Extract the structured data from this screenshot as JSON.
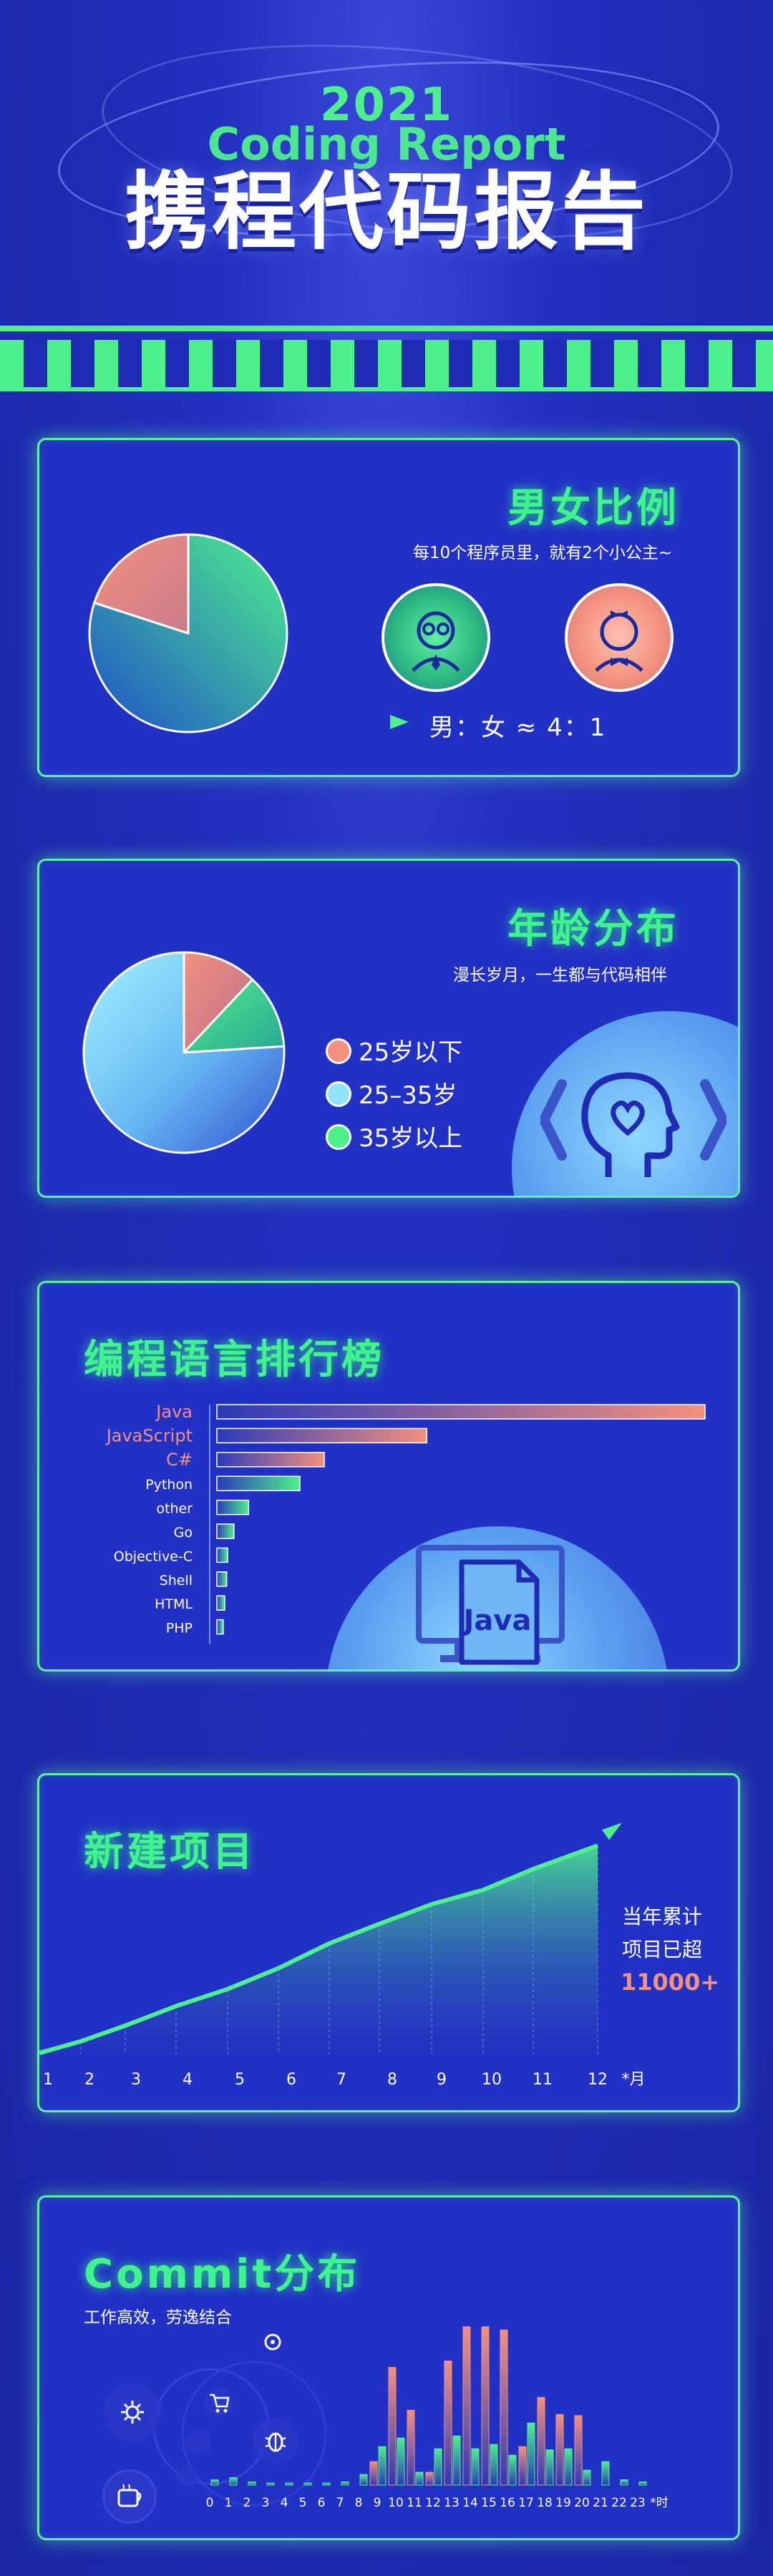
{
  "header": {
    "year": "2021",
    "subtitle": "Coding Report",
    "title": "携程代码报告"
  },
  "colors": {
    "green": "#4ef08c",
    "salmon": "#f4907e",
    "sky": "#8fe4f8",
    "bg": "#1f2bb5"
  },
  "gender": {
    "title": "男女比例",
    "caption": "每10个程序员里，就有2个小公主~",
    "ratio_text": "男：女 ≈ 4：1",
    "male_icon": "male-programmer-icon",
    "female_icon": "female-programmer-icon"
  },
  "age": {
    "title": "年龄分布",
    "caption": "漫长岁月，一生都与代码相伴",
    "icon": "head-heart-code-icon",
    "legend": [
      "25岁以下",
      "25–35岁",
      "35岁以上"
    ]
  },
  "languages": {
    "title": "编程语言排行榜",
    "icon": "java-file-icon",
    "java_label": "Java"
  },
  "projects": {
    "title": "新建项目",
    "summary_line1": "当年累计",
    "summary_line2": "项目已超",
    "summary_value": "11000+",
    "unit": "*月"
  },
  "commits": {
    "title": "Commit分布",
    "caption": "工作高效，劳逸结合",
    "unit": "*时",
    "icons": [
      "coffee-icon",
      "settings-icon",
      "cart-icon",
      "bug-icon"
    ]
  },
  "chart_data": [
    {
      "type": "pie",
      "id": "gender",
      "categories": [
        "男",
        "女"
      ],
      "values": [
        80,
        20
      ],
      "colors": [
        "#4ef08c",
        "#f4907e"
      ]
    },
    {
      "type": "pie",
      "id": "age",
      "categories": [
        "25岁以下",
        "25–35岁",
        "35岁以上"
      ],
      "values": [
        12,
        76,
        12
      ],
      "colors": [
        "#f4907e",
        "#8fe4f8",
        "#4ef08c"
      ]
    },
    {
      "type": "bar",
      "id": "languages",
      "orientation": "horizontal",
      "categories": [
        "Java",
        "JavaScript",
        "C#",
        "Python",
        "other",
        "Go",
        "Objective-C",
        "Shell",
        "HTML",
        "PHP"
      ],
      "values": [
        100,
        43,
        22,
        17,
        6.5,
        3.5,
        2.2,
        2.0,
        1.6,
        1.3
      ],
      "highlight": [
        "Java",
        "JavaScript",
        "C#"
      ]
    },
    {
      "type": "area",
      "id": "projects",
      "x": [
        1,
        2,
        3,
        4,
        5,
        6,
        7,
        8,
        9,
        10,
        11,
        12
      ],
      "values": [
        1,
        10,
        22,
        37,
        50,
        66,
        85,
        100,
        115,
        126,
        142,
        160
      ],
      "ylim": [
        0,
        170
      ]
    },
    {
      "type": "bar",
      "id": "commits",
      "categories": [
        "0",
        "1",
        "2",
        "3",
        "4",
        "5",
        "6",
        "7",
        "8",
        "9",
        "10",
        "11",
        "12",
        "13",
        "14",
        "15",
        "16",
        "17",
        "18",
        "19",
        "20",
        "21",
        "22",
        "23"
      ],
      "series": [
        {
          "values": [
            1.2,
            2.0,
            0.8,
            0.6,
            0.5,
            0.5,
            0.6,
            1.0,
            2.5,
            22,
            110,
            70,
            12,
            116,
            148,
            148,
            145,
            36,
            82,
            66,
            65,
            3,
            6,
            1
          ]
        },
        {
          "values": [
            5,
            7,
            3,
            2,
            2,
            2,
            2,
            3,
            10,
            36,
            44,
            12,
            34,
            46,
            34,
            38,
            28,
            58,
            33,
            34,
            14,
            22,
            5,
            3
          ]
        }
      ],
      "ylim": [
        0,
        150
      ]
    }
  ]
}
